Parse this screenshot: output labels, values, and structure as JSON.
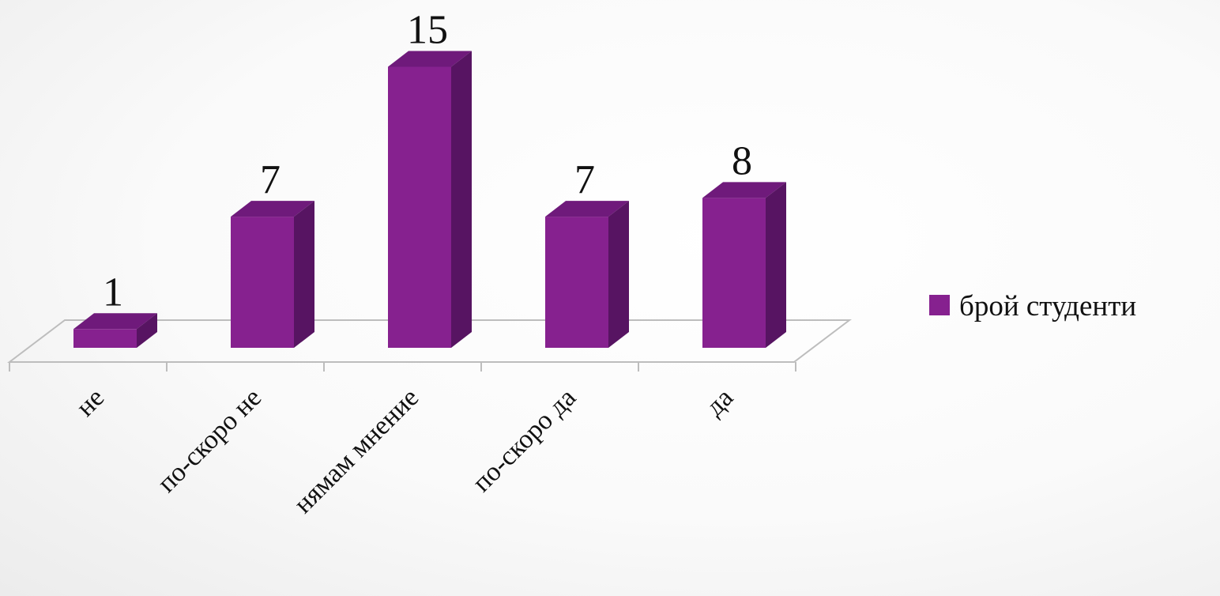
{
  "chart_data": {
    "type": "bar",
    "style": "3d-column",
    "categories": [
      "не",
      "по-скоро не",
      "нямам мнение",
      "по-скоро да",
      "да"
    ],
    "series": [
      {
        "name": "брой студенти",
        "values": [
          1,
          7,
          15,
          7,
          8
        ],
        "color": "#86218f",
        "color_top": "#6f1a7b",
        "color_side": "#571462"
      }
    ],
    "ylim": [
      0,
      15
    ],
    "grid": false,
    "legend": {
      "position": "right",
      "entries": [
        "брой студенти"
      ]
    },
    "data_labels": true,
    "axis_color": "#bdbdbd"
  }
}
